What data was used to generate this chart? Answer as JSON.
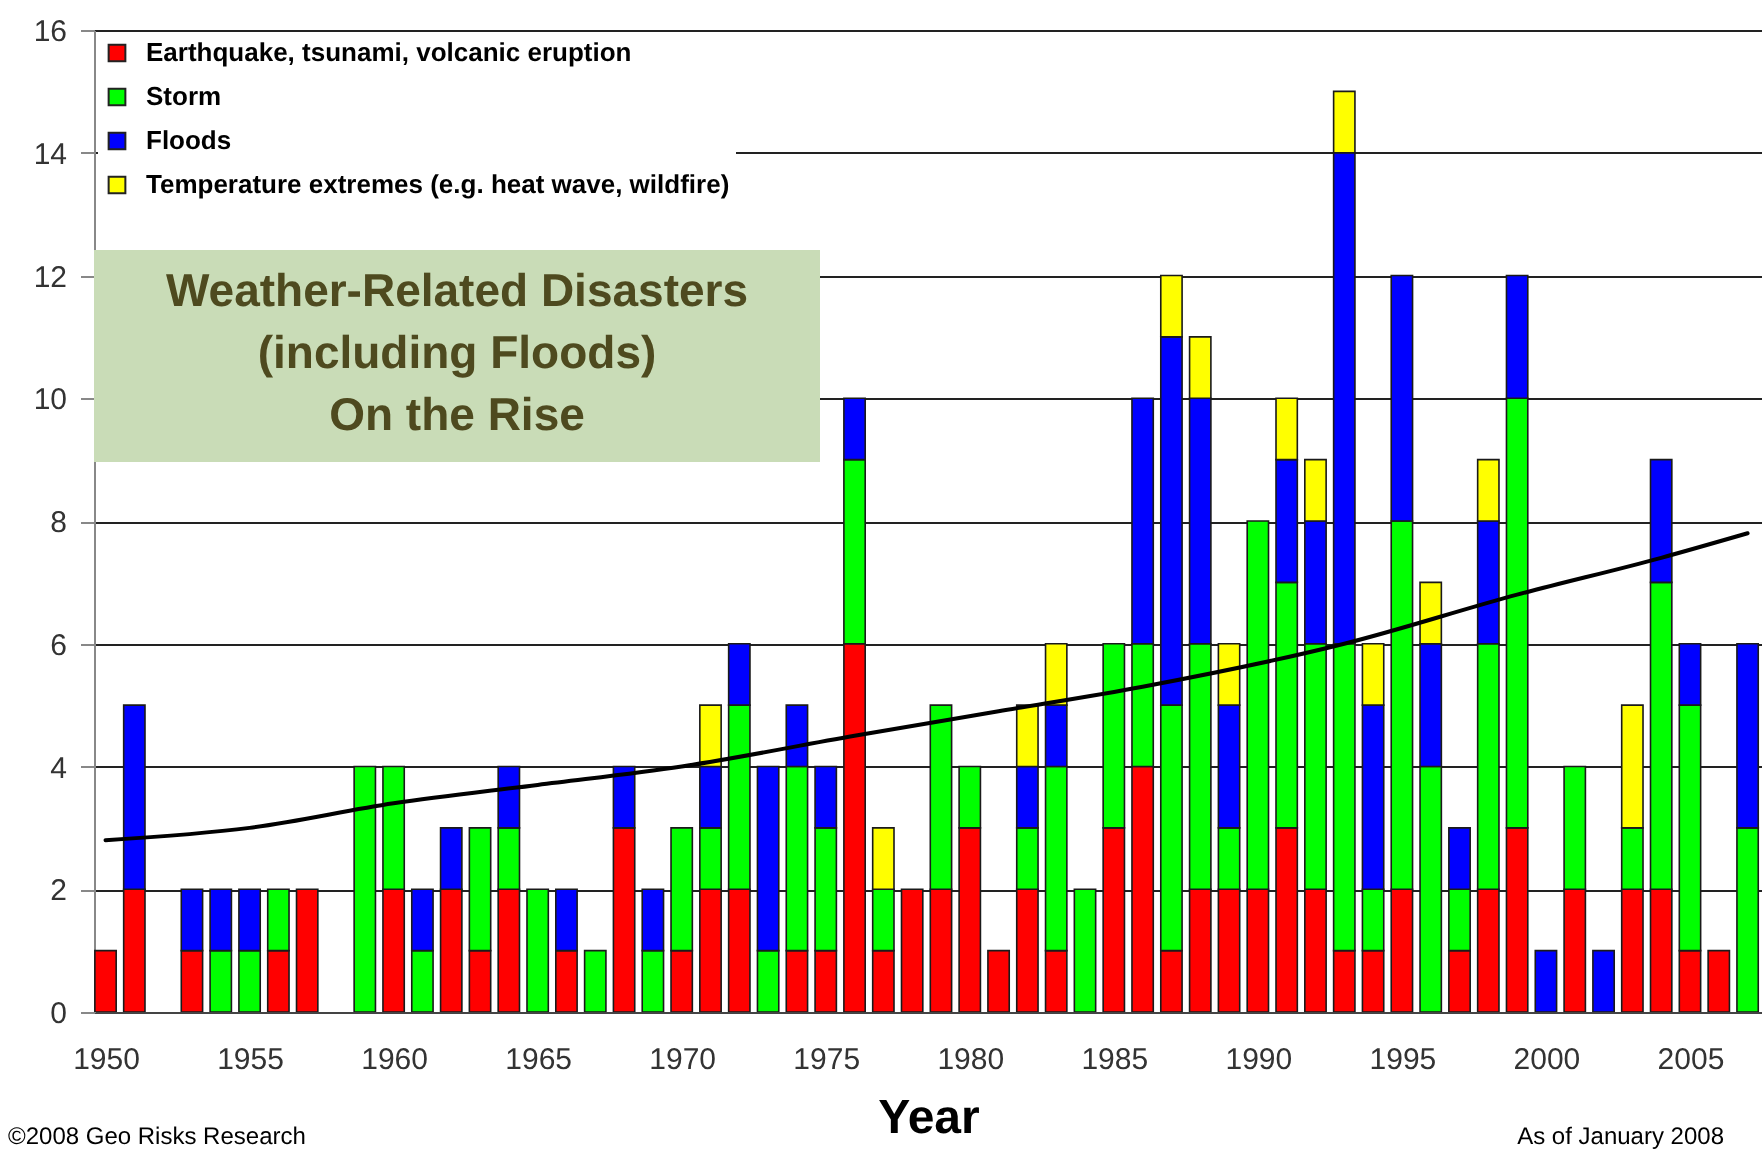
{
  "chart_data": {
    "type": "bar",
    "title": "Weather-Related Disasters\n(including Floods)\nOn the Rise",
    "xlabel": "Year",
    "annotations": [
      "©2008 Geo Risks Research",
      "As of January 2008"
    ],
    "x": [
      1950,
      1951,
      1952,
      1953,
      1954,
      1955,
      1956,
      1957,
      1958,
      1959,
      1960,
      1961,
      1962,
      1963,
      1964,
      1965,
      1966,
      1967,
      1968,
      1969,
      1970,
      1971,
      1972,
      1973,
      1974,
      1975,
      1976,
      1977,
      1978,
      1979,
      1980,
      1981,
      1982,
      1983,
      1984,
      1985,
      1986,
      1987,
      1988,
      1989,
      1990,
      1991,
      1992,
      1993,
      1994,
      1995,
      1996,
      1997,
      1998,
      1999,
      2000,
      2001,
      2002,
      2003,
      2004,
      2005,
      2006,
      2007
    ],
    "stacked": true,
    "series": [
      {
        "name": "Earthquake, tsunami, volcanic eruption",
        "color": "#ff0000",
        "values": [
          1,
          2,
          null,
          1,
          null,
          null,
          1,
          2,
          null,
          null,
          2,
          null,
          2,
          1,
          2,
          null,
          1,
          null,
          3,
          null,
          1,
          2,
          2,
          null,
          1,
          1,
          6,
          1,
          2,
          2,
          3,
          1,
          2,
          1,
          null,
          3,
          4,
          1,
          2,
          2,
          2,
          3,
          2,
          1,
          1,
          2,
          null,
          1,
          2,
          3,
          null,
          2,
          null,
          2,
          2,
          1,
          1,
          null
        ]
      },
      {
        "name": "Storm",
        "color": "#00ff00",
        "values": [
          null,
          null,
          null,
          null,
          1,
          1,
          1,
          null,
          null,
          4,
          2,
          1,
          null,
          2,
          1,
          2,
          null,
          1,
          null,
          1,
          2,
          1,
          3,
          1,
          3,
          2,
          3,
          1,
          null,
          3,
          1,
          null,
          1,
          3,
          2,
          3,
          2,
          4,
          4,
          1,
          6,
          4,
          4,
          5,
          1,
          6,
          4,
          1,
          4,
          7,
          null,
          2,
          null,
          1,
          5,
          4,
          null,
          3
        ]
      },
      {
        "name": "Floods",
        "color": "#0000ff",
        "values": [
          null,
          3,
          null,
          1,
          1,
          1,
          null,
          null,
          null,
          null,
          null,
          1,
          1,
          null,
          1,
          null,
          1,
          null,
          1,
          1,
          null,
          1,
          1,
          3,
          1,
          1,
          1,
          null,
          null,
          null,
          null,
          null,
          1,
          1,
          null,
          null,
          4,
          6,
          4,
          2,
          null,
          2,
          2,
          8,
          3,
          4,
          2,
          1,
          2,
          2,
          1,
          null,
          1,
          null,
          2,
          1,
          null,
          3
        ]
      },
      {
        "name": "Temperature extremes (e.g. heat wave, wildfire)",
        "color": "#ffff00",
        "values": [
          null,
          null,
          null,
          null,
          null,
          null,
          null,
          null,
          null,
          null,
          null,
          null,
          null,
          null,
          null,
          null,
          null,
          null,
          null,
          null,
          null,
          1,
          null,
          null,
          null,
          null,
          null,
          1,
          null,
          null,
          null,
          null,
          1,
          1,
          null,
          null,
          null,
          1,
          1,
          1,
          null,
          1,
          1,
          1,
          1,
          null,
          1,
          null,
          1,
          null,
          null,
          null,
          null,
          2,
          null,
          null,
          null,
          null
        ]
      },
      {
        "type": "line",
        "color": "#000000",
        "x": [
          1950,
          1955,
          1960,
          1965,
          1970,
          1976,
          1981,
          1986,
          1993,
          1999,
          2004,
          2007
        ],
        "values": [
          2.8,
          3.0,
          3.4,
          3.7,
          4.0,
          4.5,
          4.9,
          5.3,
          6.0,
          6.8,
          7.4,
          7.8
        ]
      }
    ],
    "xlim": [
      1949.6,
      2007.5
    ],
    "xticks": [
      1950,
      1955,
      1960,
      1965,
      1970,
      1975,
      1980,
      1985,
      1990,
      1995,
      2000,
      2005
    ],
    "ylim": [
      0,
      16
    ],
    "yticks": [
      0,
      2,
      4,
      6,
      8,
      10,
      12,
      14,
      16
    ],
    "grid": "y",
    "legend": "top left"
  }
}
